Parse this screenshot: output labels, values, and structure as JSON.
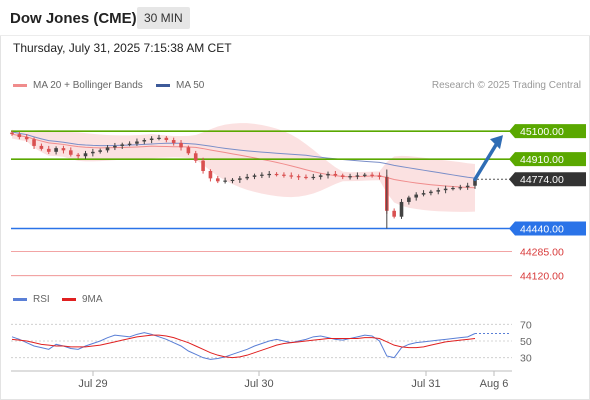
{
  "header": {
    "title": "Dow Jones (CME)",
    "interval": "30 MIN",
    "timestamp": "Thursday, July 31, 2025 7:15:38 AM CET"
  },
  "legend": {
    "ma20": "MA 20 + Bollinger Bands",
    "ma50": "MA 50",
    "credit": "Research © 2025 Trading Central",
    "rsi": "RSI",
    "rsi_ma": "9MA"
  },
  "colors": {
    "resistance": "#5aa800",
    "support": "#2a73e8",
    "pivot": "#333333",
    "lower_support": "#e85555",
    "ma20": "#f08c8c",
    "band_fill": "#fadcdc",
    "ma50": "#7a8ec8",
    "candle_up": "#444444",
    "candle_down": "#d95050",
    "rsi": "#5a7fd6",
    "rsi_ma": "#e02020",
    "arrow": "#2f6db5"
  },
  "chart_data": [
    {
      "type": "candlestick",
      "title": "Dow Jones (CME) 30 MIN",
      "ylim": [
        44050,
        45230
      ],
      "x_ticks": [
        "Jul 29",
        "Jul 30",
        "Jul 31",
        "Aug 6"
      ],
      "levels": [
        {
          "label": "45100.00",
          "value": 45100,
          "kind": "resistance"
        },
        {
          "label": "44910.00",
          "value": 44910,
          "kind": "resistance"
        },
        {
          "label": "44774.00",
          "value": 44774,
          "kind": "pivot"
        },
        {
          "label": "44440.00",
          "value": 44440,
          "kind": "support"
        },
        {
          "label": "44285.00",
          "value": 44285,
          "kind": "lower_support"
        },
        {
          "label": "44120.00",
          "value": 44120,
          "kind": "lower_support"
        }
      ],
      "series": [
        {
          "name": "MA 20 + Bollinger Bands",
          "kind": "ma20"
        },
        {
          "name": "MA 50",
          "kind": "ma50"
        }
      ],
      "closes": [
        45080,
        45060,
        45045,
        45000,
        44980,
        44960,
        44985,
        44970,
        44940,
        44930,
        44950,
        44960,
        44970,
        44990,
        45000,
        45010,
        45015,
        45030,
        45040,
        45050,
        45055,
        45040,
        45020,
        44990,
        44950,
        44900,
        44830,
        44780,
        44760,
        44765,
        44770,
        44780,
        44790,
        44800,
        44805,
        44810,
        44805,
        44800,
        44795,
        44790,
        44785,
        44790,
        44800,
        44810,
        44800,
        44790,
        44795,
        44800,
        44805,
        44800,
        44790,
        44560,
        44520,
        44620,
        44650,
        44670,
        44680,
        44690,
        44700,
        44710,
        44715,
        44720,
        44730,
        44774
      ],
      "projection": {
        "from": 44774,
        "to": 45100
      }
    },
    {
      "type": "line",
      "title": "",
      "ylim": [
        20,
        80
      ],
      "y_ticks": [
        70,
        50,
        30
      ],
      "series": [
        {
          "name": "RSI",
          "values": [
            55,
            52,
            48,
            44,
            42,
            40,
            46,
            44,
            41,
            40,
            44,
            47,
            50,
            54,
            57,
            56,
            55,
            58,
            60,
            58,
            55,
            52,
            48,
            44,
            38,
            34,
            30,
            28,
            29,
            31,
            34,
            37,
            40,
            44,
            47,
            50,
            52,
            50,
            48,
            50,
            52,
            55,
            56,
            54,
            52,
            51,
            53,
            55,
            57,
            56,
            50,
            32,
            30,
            42,
            46,
            48,
            49,
            50,
            51,
            52,
            53,
            54,
            55,
            59
          ]
        },
        {
          "name": "9MA",
          "values": [
            52,
            51,
            50,
            48,
            46,
            45,
            44,
            44,
            43,
            43,
            43,
            44,
            45,
            47,
            49,
            51,
            53,
            55,
            56,
            57,
            57,
            56,
            54,
            51,
            48,
            44,
            40,
            36,
            33,
            31,
            30,
            31,
            33,
            36,
            39,
            42,
            45,
            47,
            48,
            49,
            50,
            51,
            52,
            53,
            53,
            53,
            53,
            53,
            54,
            54,
            53,
            49,
            45,
            43,
            42,
            42,
            43,
            45,
            47,
            49,
            50,
            51,
            52,
            53
          ]
        }
      ],
      "projection": 59
    }
  ]
}
